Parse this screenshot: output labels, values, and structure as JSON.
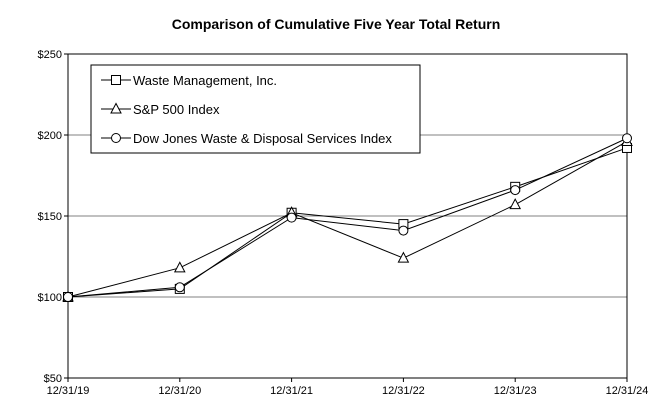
{
  "chart_data": {
    "type": "line",
    "title": "Comparison of Cumulative Five Year Total Return",
    "categories": [
      "12/31/19",
      "12/31/20",
      "12/31/21",
      "12/31/22",
      "12/31/23",
      "12/31/24"
    ],
    "y_ticks": [
      "$50",
      "$100",
      "$150",
      "$200",
      "$250"
    ],
    "ylim": [
      50,
      250
    ],
    "grid": "horizontal",
    "legend_position": "top-left",
    "series": [
      {
        "name": "Waste Management, Inc.",
        "marker": "square",
        "values": [
          100,
          105,
          152,
          145,
          168,
          192
        ]
      },
      {
        "name": "S&P 500 Index",
        "marker": "triangle",
        "values": [
          100,
          118,
          152,
          124,
          157,
          196
        ]
      },
      {
        "name": "Dow Jones Waste & Disposal Services Index",
        "marker": "circle",
        "values": [
          100,
          106,
          149,
          141,
          166,
          198
        ]
      }
    ],
    "colors": {
      "line": "#000000",
      "grid": "#808080",
      "background": "#ffffff"
    }
  }
}
